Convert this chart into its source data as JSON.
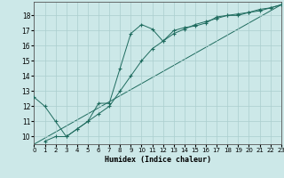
{
  "xlabel": "Humidex (Indice chaleur)",
  "bg_color": "#cce8e8",
  "line_color": "#1e6b5e",
  "xlim": [
    0,
    23
  ],
  "ylim": [
    9.5,
    18.9
  ],
  "xticks": [
    0,
    1,
    2,
    3,
    4,
    5,
    6,
    7,
    8,
    9,
    10,
    11,
    12,
    13,
    14,
    15,
    16,
    17,
    18,
    19,
    20,
    21,
    22,
    23
  ],
  "yticks": [
    10,
    11,
    12,
    13,
    14,
    15,
    16,
    17,
    18
  ],
  "line1_x": [
    0,
    1,
    2,
    3,
    4,
    5,
    6,
    7,
    8,
    9,
    10,
    11,
    12,
    13,
    14,
    15,
    16,
    17,
    18,
    19,
    20,
    21,
    22,
    23
  ],
  "line1_y": [
    12.6,
    12.0,
    11.0,
    10.0,
    10.5,
    11.0,
    12.2,
    12.2,
    14.5,
    16.8,
    17.4,
    17.1,
    16.3,
    17.0,
    17.2,
    17.3,
    17.5,
    17.9,
    18.0,
    18.0,
    18.2,
    18.3,
    18.5,
    18.7
  ],
  "line2_x": [
    1,
    2,
    3,
    4,
    5,
    6,
    7,
    8,
    9,
    10,
    11,
    12,
    13,
    14,
    15,
    16,
    17,
    18,
    19,
    20,
    21,
    22,
    23
  ],
  "line2_y": [
    9.7,
    10.0,
    10.0,
    10.5,
    11.0,
    11.5,
    12.0,
    13.0,
    14.0,
    15.0,
    15.8,
    16.3,
    16.8,
    17.1,
    17.4,
    17.6,
    17.8,
    18.0,
    18.1,
    18.2,
    18.4,
    18.5,
    18.7
  ],
  "line3_x": [
    0,
    23
  ],
  "line3_y": [
    9.5,
    18.7
  ]
}
